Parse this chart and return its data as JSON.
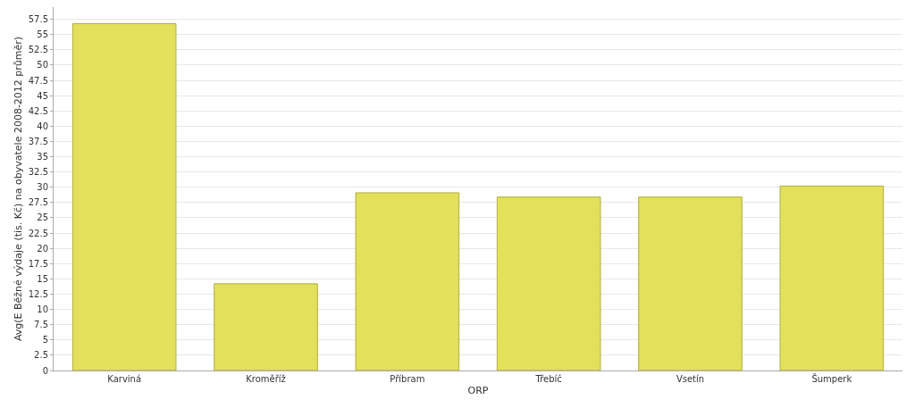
{
  "chart_data": {
    "type": "bar",
    "xlabel": "ORP",
    "ylabel": "Avg(E Běžné výdaje (tis. Kč) na obyvatele 2008-2012 průměr)",
    "categories": [
      "Karviná",
      "Kroměříž",
      "Příbram",
      "Třebíč",
      "Vsetín",
      "Šumperk"
    ],
    "values": [
      56.8,
      14.2,
      29.1,
      28.4,
      28.4,
      30.2
    ],
    "color": "#e3e05c",
    "ylim": [
      0,
      59.5
    ],
    "yticks": [
      0,
      2.5,
      5,
      7.5,
      10,
      12.5,
      15,
      17.5,
      20,
      22.5,
      25,
      27.5,
      30,
      32.5,
      35,
      37.5,
      40,
      42.5,
      45,
      47.5,
      50,
      52.5,
      55,
      57.5
    ],
    "grid": "y"
  }
}
